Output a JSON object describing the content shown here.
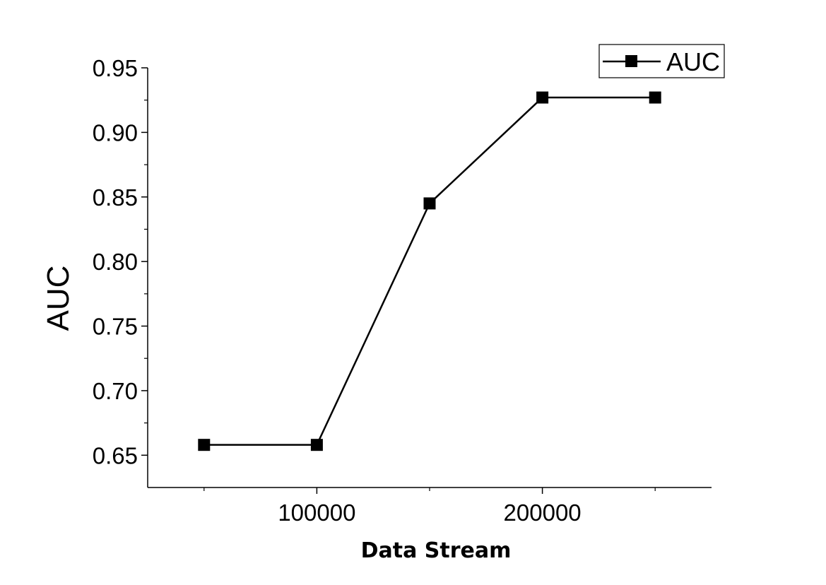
{
  "chart_data": {
    "type": "line",
    "xlabel": "Data Stream",
    "ylabel": "AUC",
    "xlim": [
      25000,
      275000
    ],
    "ylim": [
      0.625,
      0.95
    ],
    "x_ticks": [
      100000,
      200000
    ],
    "x_minor_ticks": [
      50000,
      150000,
      250000
    ],
    "y_ticks": [
      "0.65",
      "0.70",
      "0.75",
      "0.80",
      "0.85",
      "0.90",
      "0.95"
    ],
    "grid": false,
    "legend": "top-right",
    "series": [
      {
        "name": "AUC",
        "x": [
          50000,
          100000,
          150000,
          200000,
          250000
        ],
        "values": [
          0.658,
          0.658,
          0.845,
          0.927,
          0.927
        ],
        "color": "#000000",
        "marker": "square"
      }
    ]
  }
}
